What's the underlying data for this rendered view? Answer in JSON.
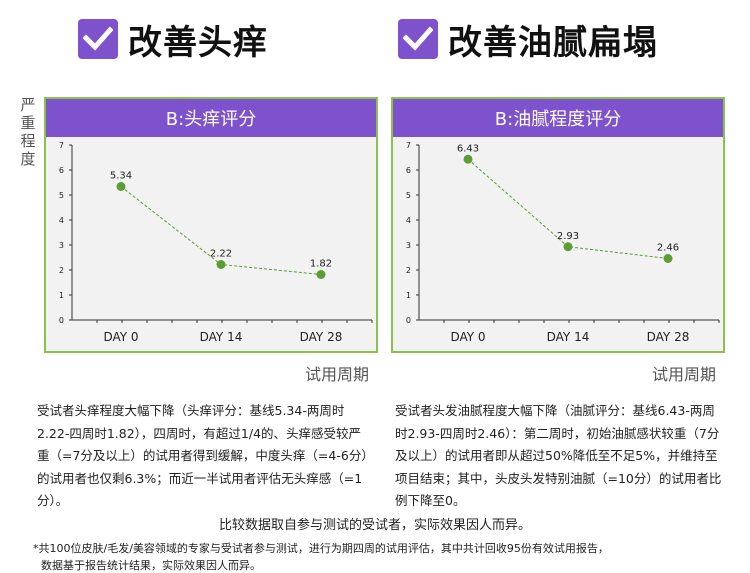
{
  "headings": {
    "left": "改善头痒",
    "right": "改善油腻扁塌"
  },
  "y_axis_title": "严重程度",
  "x_axis_title": "试用周期",
  "accent_color": "#7d52cc",
  "series_color": "#5a9e35",
  "panel_border_color": "#8bc34a",
  "chart_data": [
    {
      "type": "line",
      "title": "B:头痒评分",
      "categories": [
        "DAY 0",
        "DAY 14",
        "DAY 28"
      ],
      "values": [
        5.34,
        2.22,
        1.82
      ],
      "data_labels": [
        "5.34",
        "2.22",
        "1.82"
      ],
      "yticks": [
        "0",
        "1",
        "2",
        "3",
        "4",
        "5",
        "6",
        "7"
      ],
      "ylim": [
        0,
        7
      ],
      "ylabel": "严重程度",
      "xlabel": "试用周期",
      "grid": false,
      "line_style": "dashed"
    },
    {
      "type": "line",
      "title": "B:油腻程度评分",
      "categories": [
        "DAY 0",
        "DAY 14",
        "DAY 28"
      ],
      "values": [
        6.43,
        2.93,
        2.46
      ],
      "data_labels": [
        "6.43",
        "2.93",
        "2.46"
      ],
      "yticks": [
        "0",
        "1",
        "2",
        "3",
        "4",
        "5",
        "6",
        "7"
      ],
      "ylim": [
        0,
        7
      ],
      "ylabel": "严重程度",
      "xlabel": "试用周期",
      "grid": false,
      "line_style": "dashed"
    }
  ],
  "descriptions": {
    "left": "受试者头痒程度大幅下降（头痒评分：基线5.34-两周时2.22-四周时1.82），四周时，有超过1/4的、头痒感受较严重（=7分及以上）的试用者得到缓解，中度头痒（=4-6分）的试用者也仅剩6.3%；而近一半试用者评估无头痒感（=1分）。",
    "right": "受试者头发油腻程度大幅下降（油腻评分：基线6.43-两周时2.93-四周时2.46）：第二周时，初始油腻感状较重（7分及以上）的试用者即从超过50%降低至不足5%，并维持至项目结束；其中，头皮头发特别油腻（=10分）的试用者比例下降至0。"
  },
  "disclaimer": "比较数据取自参与测试的受试者，实际效果因人而异。",
  "footnote": {
    "line1": "*共100位皮肤/毛发/美容领域的专家与受试者参与测试，进行为期四周的试用评估，其中共计回收95份有效试用报告，",
    "line2": "数据基于报告统计结果，实际效果因人而异。"
  }
}
